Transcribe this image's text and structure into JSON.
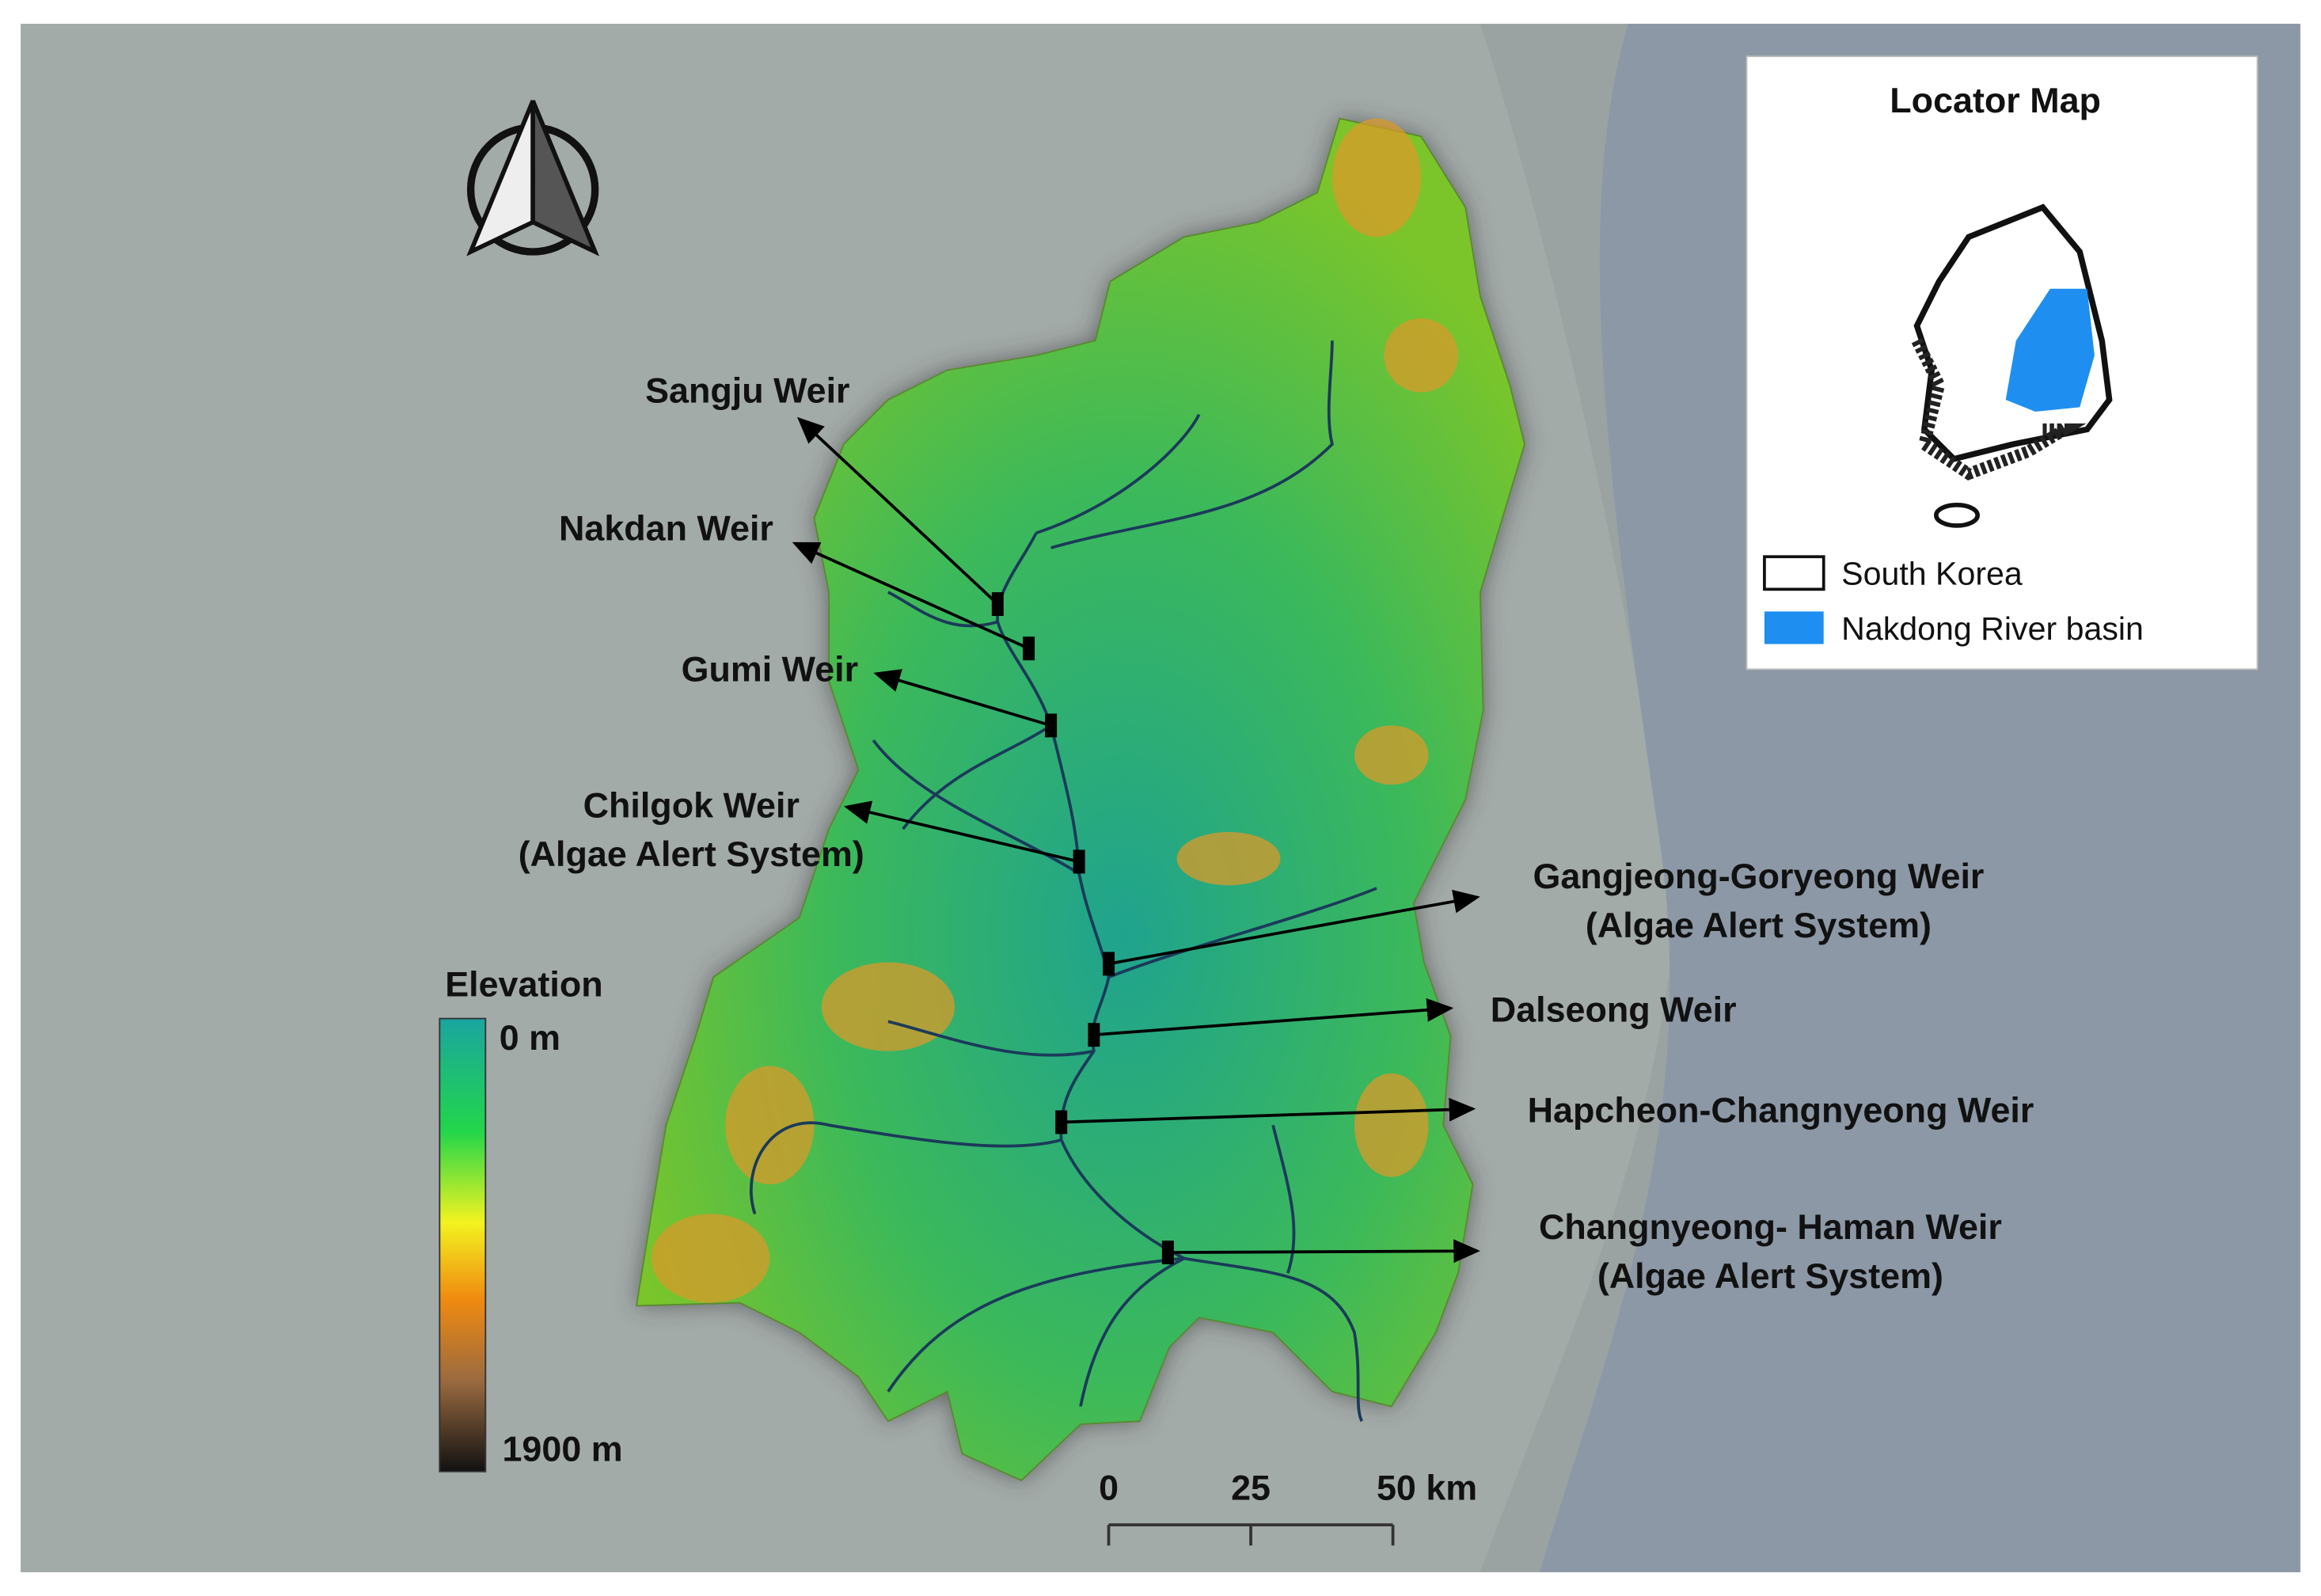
{
  "weirs": [
    {
      "lines": [
        "Sangju Weir"
      ]
    },
    {
      "lines": [
        "Nakdan Weir"
      ]
    },
    {
      "lines": [
        "Gumi Weir"
      ]
    },
    {
      "lines": [
        "Chilgok Weir",
        "(Algae Alert System)"
      ]
    },
    {
      "lines": [
        "Gangjeong-Goryeong Weir",
        "(Algae Alert System)"
      ]
    },
    {
      "lines": [
        "Dalseong Weir"
      ]
    },
    {
      "lines": [
        "Hapcheon-Changnyeong Weir"
      ]
    },
    {
      "lines": [
        "Changnyeong- Haman Weir",
        "(Algae Alert System)"
      ]
    }
  ],
  "elevation_legend": {
    "title": "Elevation",
    "min_label": "0 m",
    "max_label": "1900 m"
  },
  "scale_bar": {
    "labels": [
      "0",
      "25",
      "50 km"
    ]
  },
  "locator_map": {
    "title": "Locator Map",
    "legend": [
      "South Korea",
      "Nakdong River basin"
    ]
  }
}
